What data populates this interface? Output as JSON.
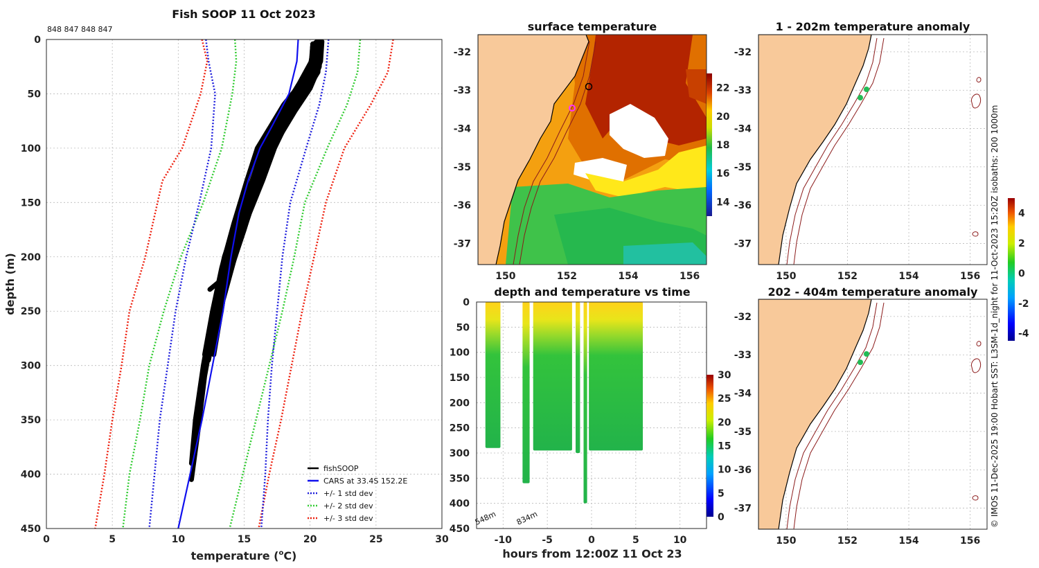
{
  "colors": {
    "land": "#f8c99a",
    "fish": "#000000",
    "cars": "#1010ee",
    "sd1": "#2020dd",
    "sd2": "#33cc33",
    "sd3": "#ee2211",
    "track": "#8b1a1a",
    "ship": "#22bb55",
    "box_ring": "#000000",
    "cars_ring": "#ff33ff"
  },
  "chart_data": [
    {
      "id": "profile",
      "type": "line",
      "title": "Fish SOOP 11 Oct 2023",
      "drop_ids": "848 847 848 847",
      "xlabel": "temperature (",
      "xlabel_sup": "o",
      "xlabel_suffix": "C)",
      "ylabel": "depth (m)",
      "xlim": [
        0,
        30
      ],
      "ylim": [
        0,
        450
      ],
      "xticks": [
        0,
        5,
        10,
        15,
        20,
        25,
        30
      ],
      "yticks": [
        0,
        50,
        100,
        150,
        200,
        250,
        300,
        350,
        400,
        450
      ],
      "legend": [
        "fishSOOP",
        "CARS at 33.4S 152.2E",
        "+/- 1 std dev",
        "+/- 2 std dev",
        "+/- 3 std dev"
      ],
      "cars_mean": [
        [
          19.1,
          0
        ],
        [
          19.0,
          20
        ],
        [
          18.4,
          50
        ],
        [
          17.1,
          80
        ],
        [
          16.2,
          100
        ],
        [
          15.3,
          130
        ],
        [
          14.6,
          160
        ],
        [
          14.0,
          200
        ],
        [
          13.4,
          250
        ],
        [
          12.6,
          300
        ],
        [
          11.8,
          350
        ],
        [
          10.9,
          400
        ],
        [
          10.0,
          450
        ]
      ],
      "sd1_minus": [
        [
          12.1,
          0
        ],
        [
          12.3,
          20
        ],
        [
          12.8,
          50
        ],
        [
          12.5,
          100
        ],
        [
          11.6,
          150
        ],
        [
          10.6,
          200
        ],
        [
          9.8,
          250
        ],
        [
          9.2,
          300
        ],
        [
          8.6,
          350
        ],
        [
          8.2,
          400
        ],
        [
          7.8,
          450
        ]
      ],
      "sd1_plus": [
        [
          21.4,
          0
        ],
        [
          21.2,
          30
        ],
        [
          20.7,
          60
        ],
        [
          19.7,
          100
        ],
        [
          18.5,
          150
        ],
        [
          17.9,
          200
        ],
        [
          17.5,
          250
        ],
        [
          17.1,
          300
        ],
        [
          16.8,
          350
        ],
        [
          16.6,
          400
        ],
        [
          16.3,
          450
        ]
      ],
      "sd2_minus": [
        [
          14.3,
          0
        ],
        [
          14.4,
          20
        ],
        [
          14.1,
          50
        ],
        [
          13.3,
          100
        ],
        [
          11.9,
          150
        ],
        [
          10.2,
          200
        ],
        [
          8.9,
          250
        ],
        [
          7.8,
          300
        ],
        [
          7.1,
          350
        ],
        [
          6.3,
          400
        ],
        [
          5.8,
          450
        ]
      ],
      "sd2_plus": [
        [
          23.8,
          0
        ],
        [
          23.6,
          30
        ],
        [
          22.8,
          60
        ],
        [
          21.3,
          100
        ],
        [
          19.6,
          150
        ],
        [
          18.8,
          200
        ],
        [
          17.9,
          250
        ],
        [
          16.9,
          300
        ],
        [
          15.9,
          350
        ],
        [
          14.9,
          400
        ],
        [
          13.9,
          450
        ]
      ],
      "sd3_minus": [
        [
          11.8,
          0
        ],
        [
          12.2,
          20
        ],
        [
          11.7,
          50
        ],
        [
          10.3,
          100
        ],
        [
          8.8,
          130
        ],
        [
          7.5,
          200
        ],
        [
          6.3,
          250
        ],
        [
          5.7,
          300
        ],
        [
          5.0,
          350
        ],
        [
          4.4,
          400
        ],
        [
          3.7,
          450
        ]
      ],
      "sd3_plus": [
        [
          26.3,
          0
        ],
        [
          25.9,
          30
        ],
        [
          24.6,
          60
        ],
        [
          22.6,
          100
        ],
        [
          21.2,
          150
        ],
        [
          20.3,
          200
        ],
        [
          19.4,
          250
        ],
        [
          18.6,
          300
        ],
        [
          17.8,
          350
        ],
        [
          16.9,
          400
        ],
        [
          16.1,
          450
        ]
      ],
      "fish_profiles": [
        [
          [
            20.5,
            2
          ],
          [
            20.4,
            20
          ],
          [
            19.5,
            40
          ],
          [
            18.3,
            60
          ],
          [
            17.2,
            80
          ],
          [
            16.4,
            100
          ],
          [
            15.6,
            130
          ],
          [
            14.6,
            160
          ],
          [
            13.5,
            200
          ],
          [
            12.8,
            240
          ],
          [
            12.2,
            290
          ]
        ],
        [
          [
            20.9,
            2
          ],
          [
            20.8,
            20
          ],
          [
            20.1,
            40
          ],
          [
            19.0,
            60
          ],
          [
            18.1,
            80
          ],
          [
            17.3,
            100
          ],
          [
            16.4,
            130
          ],
          [
            15.4,
            160
          ],
          [
            14.3,
            200
          ],
          [
            13.4,
            240
          ],
          [
            12.7,
            290
          ]
        ],
        [
          [
            20.3,
            5
          ],
          [
            20.0,
            25
          ],
          [
            19.0,
            45
          ],
          [
            18.0,
            60
          ],
          [
            17.0,
            80
          ],
          [
            16.0,
            100
          ],
          [
            15.2,
            130
          ],
          [
            14.2,
            170
          ],
          [
            13.3,
            210
          ],
          [
            12.6,
            250
          ],
          [
            12.0,
            290
          ]
        ],
        [
          [
            20.6,
            3
          ],
          [
            20.5,
            25
          ],
          [
            19.8,
            45
          ],
          [
            18.8,
            60
          ],
          [
            17.8,
            80
          ],
          [
            17.0,
            100
          ],
          [
            16.1,
            130
          ],
          [
            15.1,
            170
          ],
          [
            14.0,
            210
          ],
          [
            13.1,
            250
          ],
          [
            12.4,
            290
          ]
        ],
        [
          [
            20.7,
            2
          ],
          [
            20.6,
            30
          ],
          [
            19.6,
            50
          ],
          [
            18.4,
            70
          ],
          [
            17.4,
            90
          ],
          [
            16.6,
            110
          ],
          [
            15.8,
            140
          ],
          [
            14.6,
            180
          ],
          [
            13.4,
            230
          ],
          [
            12.6,
            270
          ],
          [
            12.0,
            310
          ],
          [
            11.5,
            360
          ],
          [
            11.0,
            405
          ]
        ],
        [
          [
            20.2,
            4
          ],
          [
            20.1,
            20
          ],
          [
            19.2,
            40
          ],
          [
            18.2,
            60
          ],
          [
            17.6,
            80
          ],
          [
            16.8,
            100
          ],
          [
            15.9,
            130
          ],
          [
            14.9,
            170
          ],
          [
            13.8,
            210
          ],
          [
            13.0,
            250
          ],
          [
            12.3,
            295
          ]
        ],
        [
          [
            20.8,
            2
          ],
          [
            20.7,
            25
          ],
          [
            20.0,
            45
          ],
          [
            18.9,
            65
          ],
          [
            17.9,
            85
          ],
          [
            16.9,
            105
          ],
          [
            16.0,
            135
          ],
          [
            15.0,
            175
          ],
          [
            13.9,
            215
          ],
          [
            12.4,
            230
          ]
        ],
        [
          [
            20.4,
            3
          ],
          [
            20.3,
            25
          ],
          [
            19.3,
            50
          ],
          [
            18.1,
            70
          ],
          [
            17.1,
            90
          ],
          [
            16.3,
            110
          ],
          [
            15.4,
            140
          ],
          [
            14.4,
            180
          ],
          [
            13.3,
            220
          ],
          [
            12.5,
            260
          ],
          [
            11.9,
            300
          ],
          [
            11.3,
            350
          ],
          [
            11.0,
            390
          ]
        ]
      ]
    },
    {
      "id": "sst",
      "type": "heatmap",
      "title": "surface temperature",
      "xticks": [
        "150",
        "152",
        "154",
        "156"
      ],
      "yticks": [
        "-32",
        "-33",
        "-34",
        "-35",
        "-36",
        "-37"
      ],
      "colorbar_ticks": [
        "22",
        "20",
        "18",
        "16",
        "14"
      ],
      "colorbar_range": [
        13,
        23
      ]
    },
    {
      "id": "time",
      "type": "scatter",
      "title": "depth and temperature vs time",
      "xlabel": "hours from 12:00Z 11 Oct 23",
      "xlim": [
        -13,
        13
      ],
      "ylim": [
        0,
        450
      ],
      "xticks": [
        "-10",
        "-5",
        "0",
        "5",
        "10"
      ],
      "yticks": [
        "0",
        "50",
        "100",
        "150",
        "200",
        "250",
        "300",
        "350",
        "400",
        "450"
      ],
      "annotations": [
        "548m",
        "834m"
      ],
      "colorbar_ticks": [
        "30",
        "25",
        "20",
        "15",
        "10",
        "5",
        "0"
      ],
      "colorbar_range": [
        0,
        30
      ],
      "casts": [
        [
          -12.0,
          -10.3,
          290
        ],
        [
          -7.8,
          -7.0,
          360
        ],
        [
          -6.6,
          -2.2,
          295
        ],
        [
          -1.8,
          -1.3,
          300
        ],
        [
          -0.9,
          -0.5,
          400
        ],
        [
          -0.3,
          5.8,
          295
        ]
      ]
    },
    {
      "id": "anom1",
      "type": "scatter",
      "title": "1 - 202m temperature anomaly",
      "xticks": [
        "150",
        "152",
        "154",
        "156"
      ],
      "yticks": [
        "-32",
        "-33",
        "-34",
        "-35",
        "-36",
        "-37"
      ],
      "ship_points": [
        [
          152.5,
          -33.15
        ],
        [
          152.75,
          -32.9
        ]
      ]
    },
    {
      "id": "anom2",
      "type": "scatter",
      "title": "202 - 404m temperature anomaly",
      "xticks": [
        "150",
        "152",
        "154",
        "156"
      ],
      "yticks": [
        "-32",
        "-33",
        "-34",
        "-35",
        "-36",
        "-37"
      ],
      "ship_points": [
        [
          152.5,
          -33.1
        ],
        [
          152.75,
          -32.9
        ]
      ]
    }
  ],
  "anomaly_colorbar": {
    "ticks": [
      "4",
      "2",
      "0",
      "-2",
      "-4"
    ],
    "range": [
      -4.5,
      5
    ]
  },
  "side_caption": "© IMOS 11-Dec-2025 19:00 Hobart SST: L3SM-1d_night for 11-Oct-2023 15:20Z isobaths: 200  1000m"
}
